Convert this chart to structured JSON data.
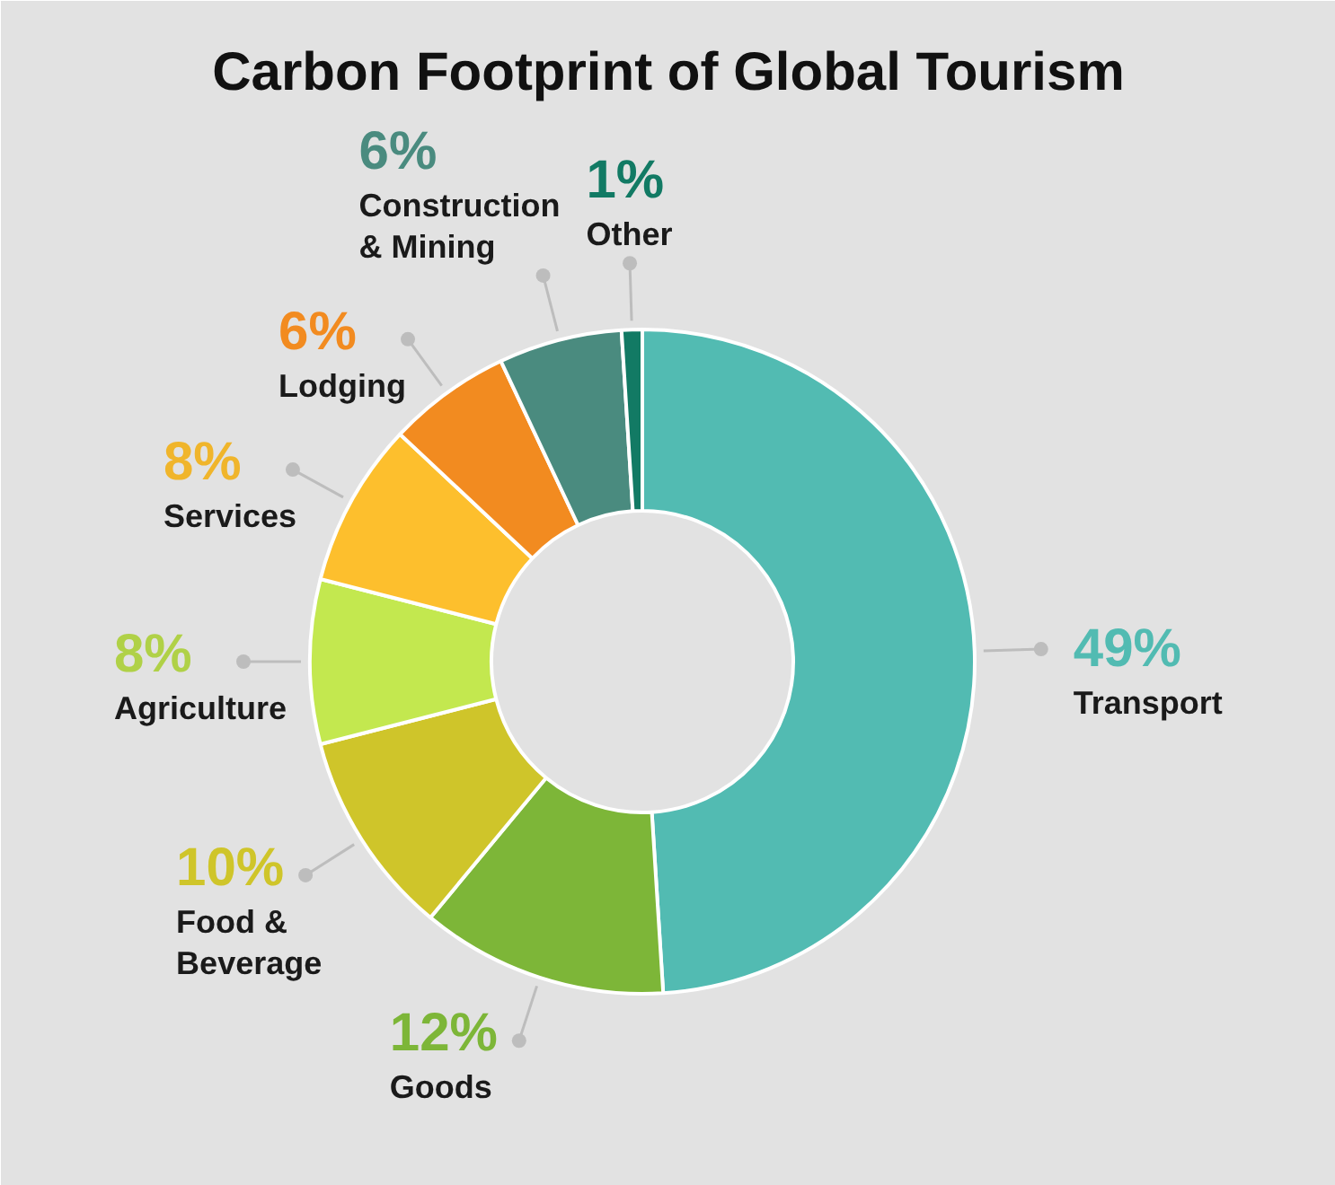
{
  "chart_data": {
    "type": "donut",
    "title": "Carbon Footprint of Global Tourism",
    "categories": [
      "Transport",
      "Goods",
      "Food & Beverage",
      "Agriculture",
      "Services",
      "Lodging",
      "Construction & Mining",
      "Other"
    ],
    "values": [
      49,
      12,
      10,
      8,
      8,
      6,
      6,
      1
    ],
    "colors": [
      "#52bbb2",
      "#7db638",
      "#cfc52a",
      "#c3e84f",
      "#fdbf2d",
      "#f28b20",
      "#4a8b7f",
      "#127a64"
    ],
    "value_labels": [
      "49%",
      "12%",
      "10%",
      "8%",
      "8%",
      "6%",
      "6%",
      "1%"
    ]
  }
}
